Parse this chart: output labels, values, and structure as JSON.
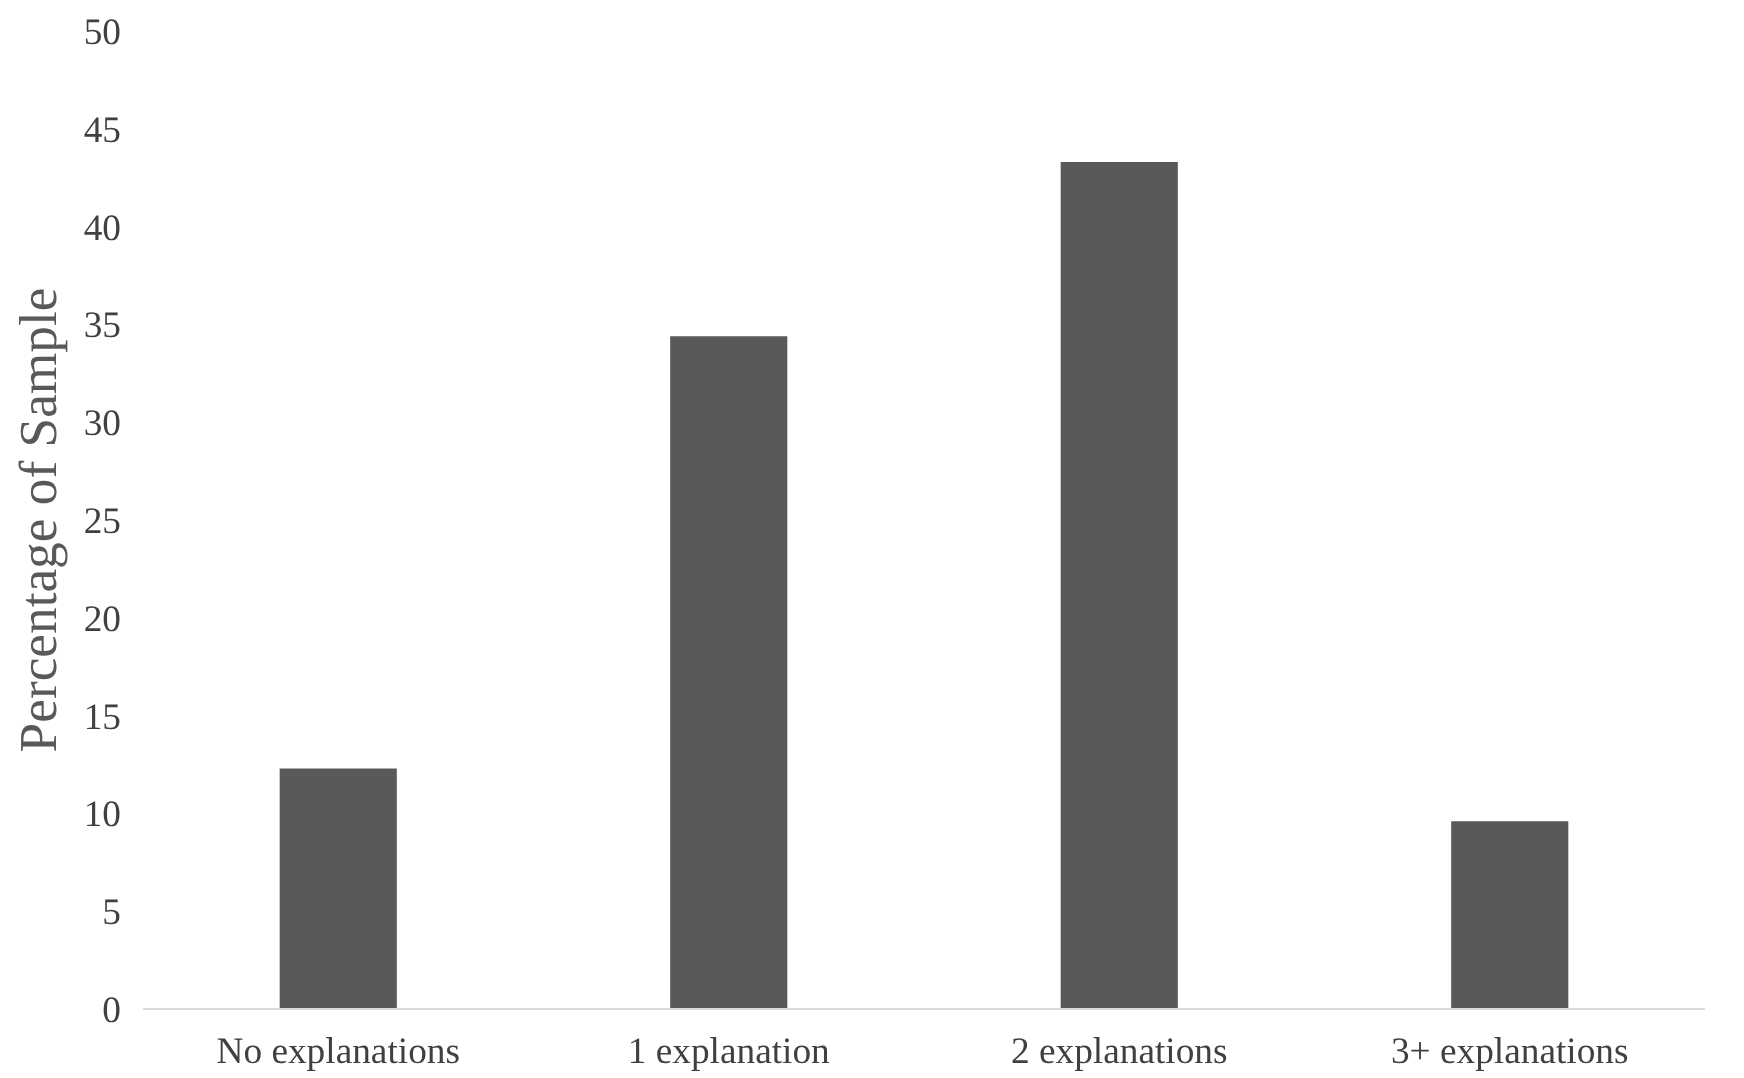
{
  "chart_data": {
    "type": "bar",
    "ylabel": "Percentage of Sample",
    "categories": [
      "No explanations",
      "1 explanation",
      "2 explanations",
      "3+ explanations"
    ],
    "values": [
      12.3,
      34.4,
      43.3,
      9.6
    ],
    "color": "#595959",
    "ylim": [
      0,
      50
    ],
    "yticks": [
      0,
      5,
      10,
      15,
      20,
      25,
      30,
      35,
      40,
      45,
      50
    ],
    "grid": false
  }
}
